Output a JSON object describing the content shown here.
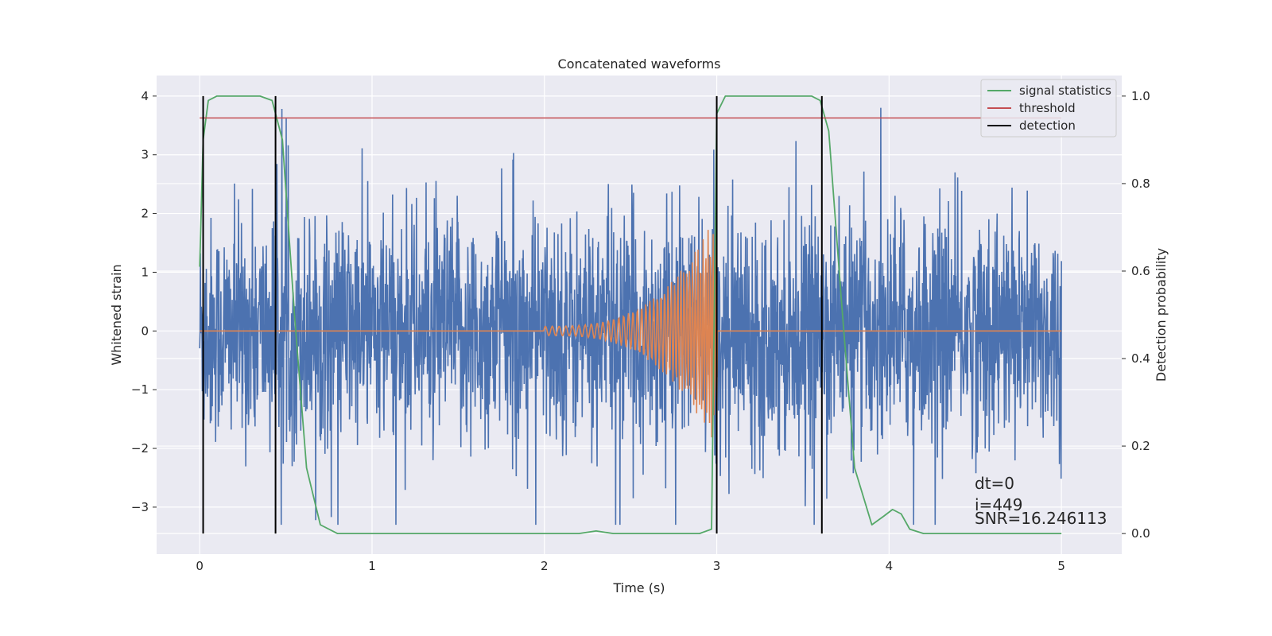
{
  "chart_data": {
    "type": "line",
    "title": "Concatenated waveforms",
    "xlabel": "Time (s)",
    "ylabel": "Whitened strain",
    "y2label": "Detection probability",
    "xlim": [
      -0.25,
      5.35
    ],
    "ylim": [
      -3.8,
      4.35
    ],
    "y2lim": [
      -0.047,
      1.047
    ],
    "xticks": [
      0,
      1,
      2,
      3,
      4,
      5
    ],
    "yticks": [
      -3,
      -2,
      -1,
      0,
      1,
      2,
      3,
      4
    ],
    "y2ticks": [
      0.0,
      0.2,
      0.4,
      0.6,
      0.8,
      1.0
    ],
    "grid": true,
    "legend_position": "top-right",
    "colors": {
      "background": "#eaeaf2",
      "noise": "#4c72b0",
      "injection": "#dd8452",
      "signal_statistics": "#55a868",
      "threshold": "#c44e52",
      "detection": "#000000"
    },
    "series": [
      {
        "name": "signal statistics",
        "axis": "right",
        "x": [
          0.0,
          0.02,
          0.05,
          0.1,
          0.35,
          0.42,
          0.48,
          0.55,
          0.62,
          0.7,
          0.8,
          1.5,
          2.2,
          2.3,
          2.4,
          2.9,
          2.97,
          3.0,
          3.05,
          3.55,
          3.6,
          3.65,
          3.72,
          3.8,
          3.9,
          3.97,
          4.02,
          4.07,
          4.12,
          4.2,
          5.0
        ],
        "y": [
          0.61,
          0.9,
          0.99,
          1.0,
          1.0,
          0.99,
          0.9,
          0.5,
          0.15,
          0.02,
          0.0,
          0.0,
          0.0,
          0.006,
          0.0,
          0.0,
          0.01,
          0.96,
          1.0,
          1.0,
          0.99,
          0.92,
          0.55,
          0.15,
          0.02,
          0.04,
          0.055,
          0.045,
          0.01,
          0.0,
          0.0
        ]
      },
      {
        "name": "threshold",
        "axis": "right",
        "x": [
          0.0,
          5.0
        ],
        "y": [
          0.95,
          0.95
        ]
      },
      {
        "name": "detection",
        "axis": "left",
        "type": "vlines",
        "x": [
          0.02,
          0.44,
          3.0,
          3.61
        ],
        "ymin": -3.45,
        "ymax": 4.0
      }
    ],
    "noise": {
      "axis": "left",
      "x_range": [
        0.0,
        5.0
      ],
      "amplitude_range": [
        -3.3,
        3.8
      ],
      "typical_band": [
        -1.5,
        1.7
      ]
    },
    "injection": {
      "axis": "left",
      "x_range": [
        2.0,
        3.0
      ],
      "start_amplitude": 0.08,
      "peak_amplitude": 2.0,
      "start_frequency_hz": 25,
      "end_frequency_hz": 75
    },
    "annotation": [
      "dt=0",
      "i=449",
      "SNR=16.246113"
    ]
  }
}
